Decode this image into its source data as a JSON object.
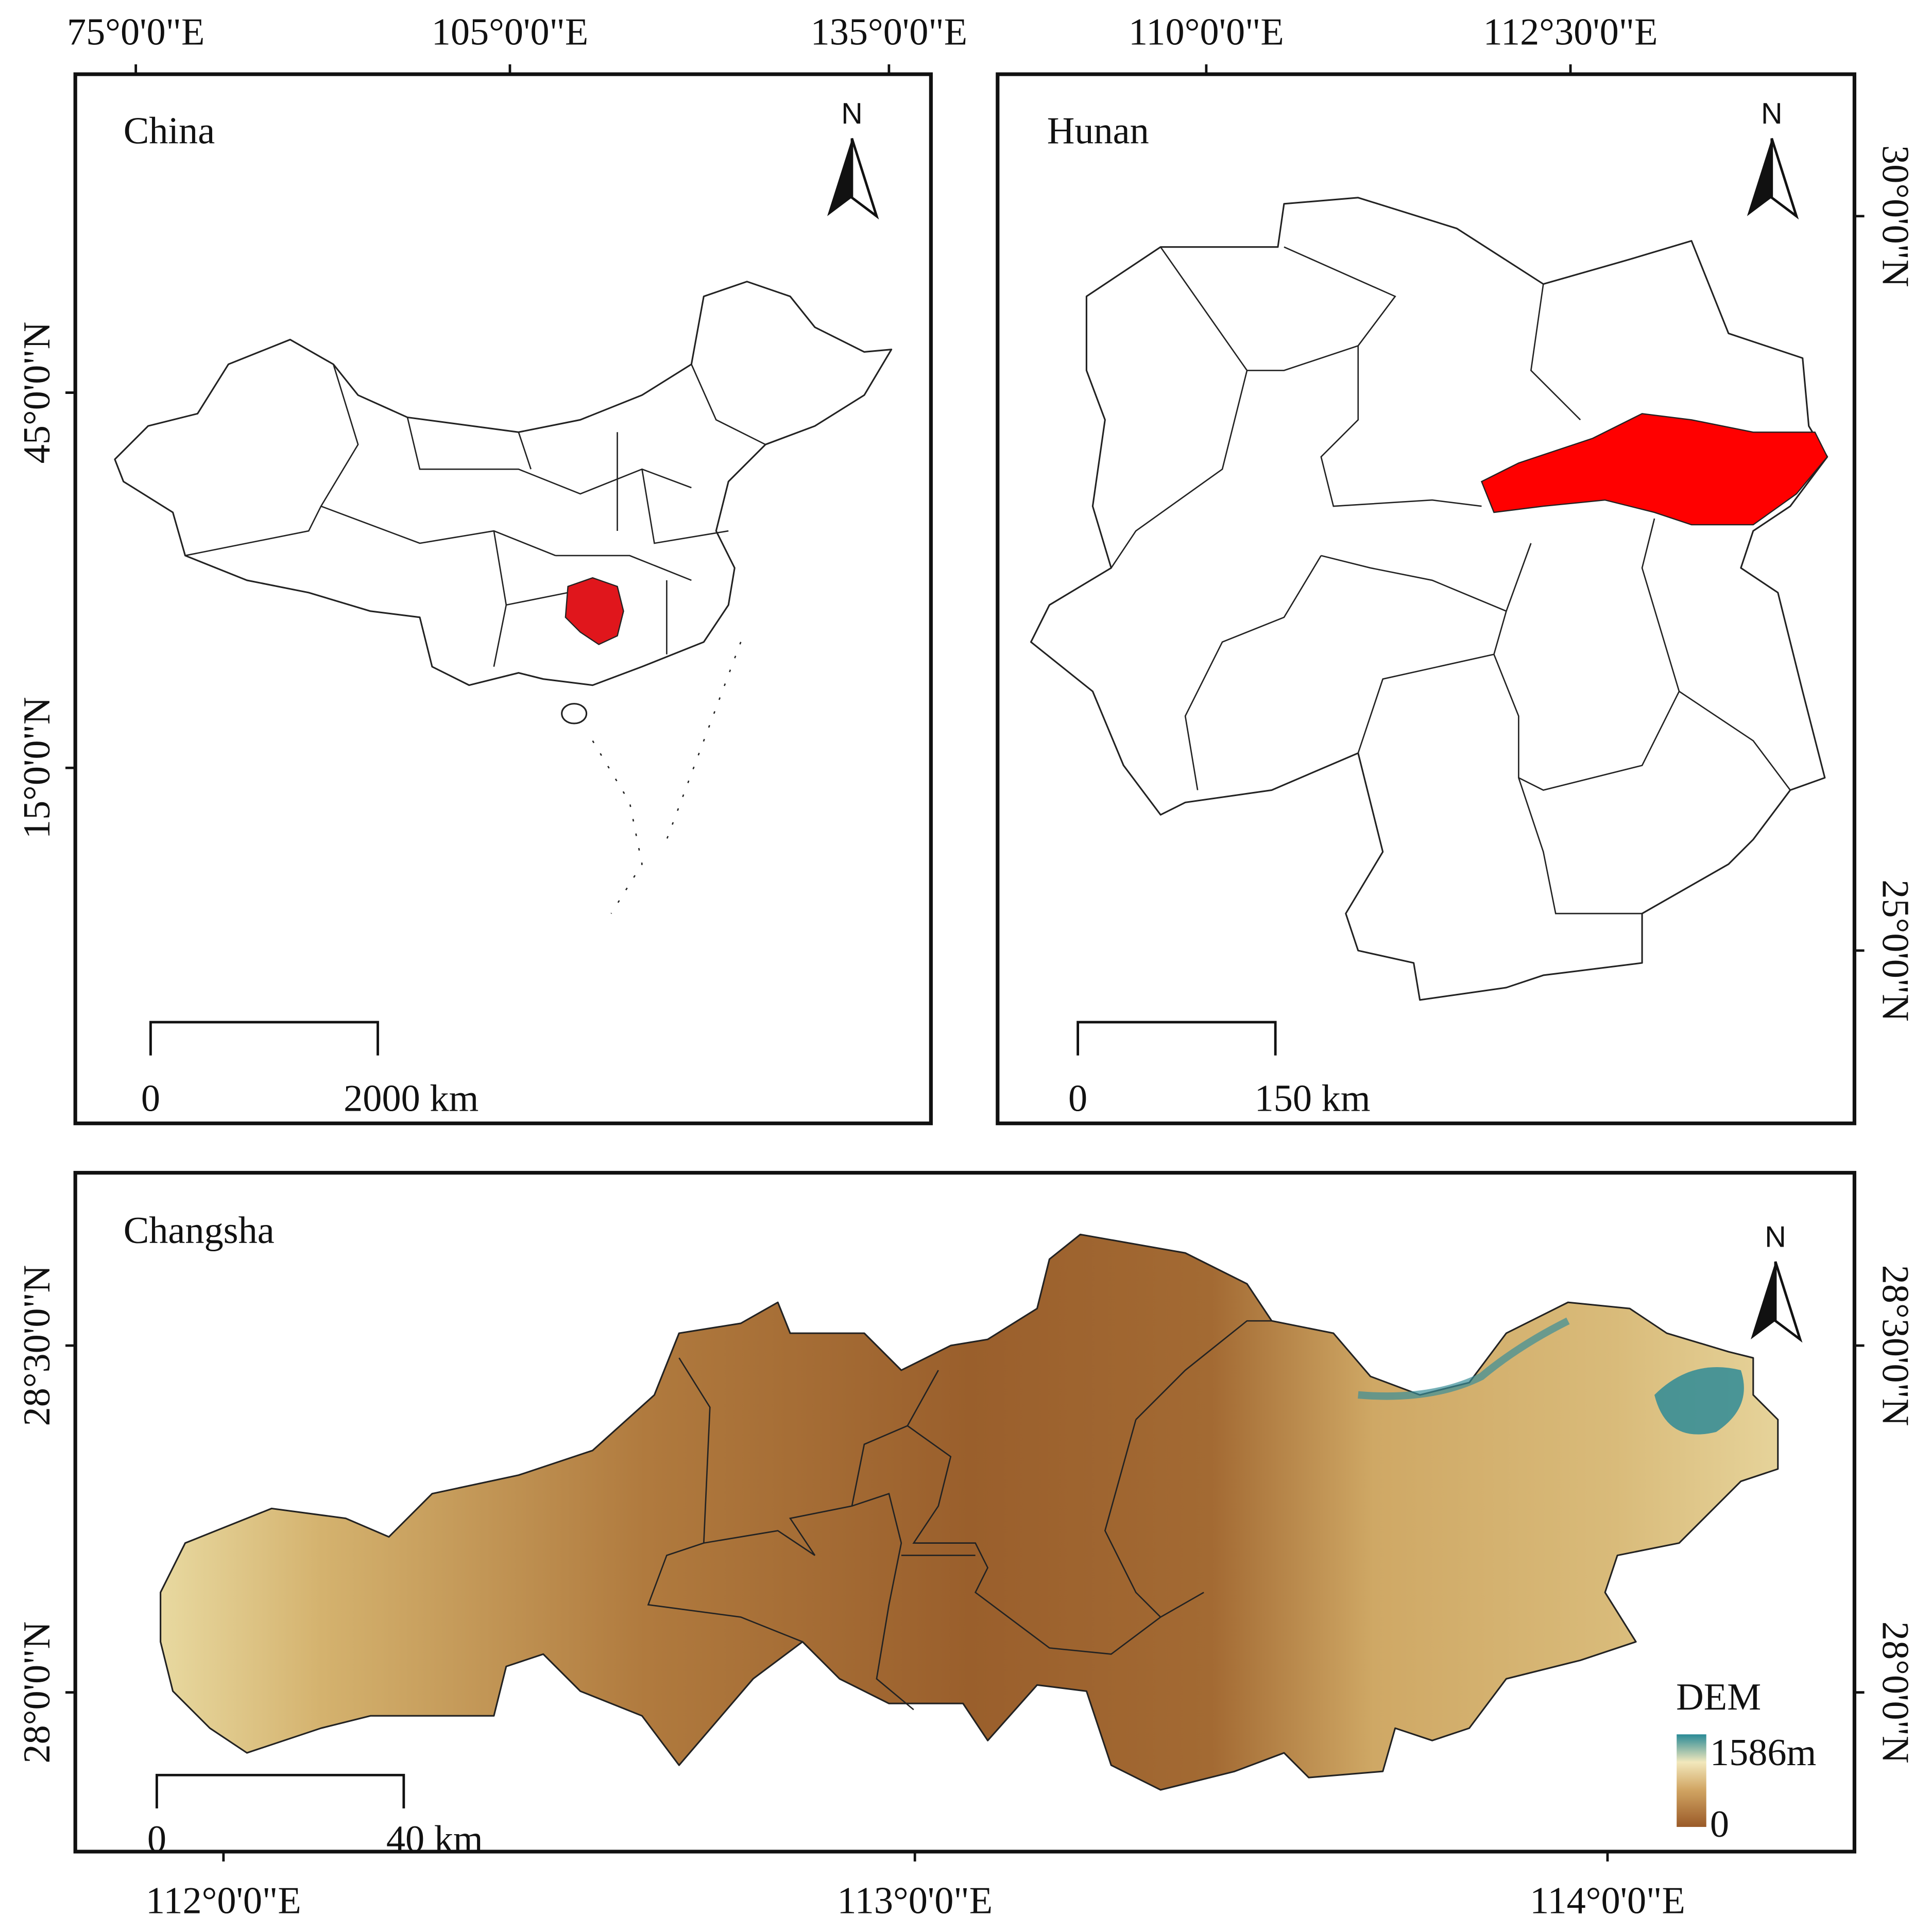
{
  "panels": [
    {
      "title": "China",
      "top_labels": [
        "75°0'0\"E",
        "105°0'0\"E",
        "135°0'0\"E"
      ],
      "side_labels": [
        "45°0'0\"N",
        "15°0'0\"N"
      ],
      "north": "N",
      "scale": {
        "start": "0",
        "end": "2000 km"
      }
    },
    {
      "title": "Hunan",
      "top_labels": [
        "110°0'0\"E",
        "112°30'0\"E"
      ],
      "side_labels": [
        "30°0'0\"N",
        "25°0'0\"N"
      ],
      "north": "N",
      "scale": {
        "start": "0",
        "end": "150 km"
      }
    },
    {
      "title": "Changsha",
      "bottom_labels": [
        "112°0'0\"E",
        "113°0'0\"E",
        "114°0'0\"E"
      ],
      "side_labels": [
        "28°30'0\"N",
        "28°0'0\"N"
      ],
      "north": "N",
      "scale": {
        "start": "0",
        "end": "40 km"
      },
      "legend": {
        "title": "DEM",
        "max": "1586m",
        "min": "0"
      }
    }
  ]
}
